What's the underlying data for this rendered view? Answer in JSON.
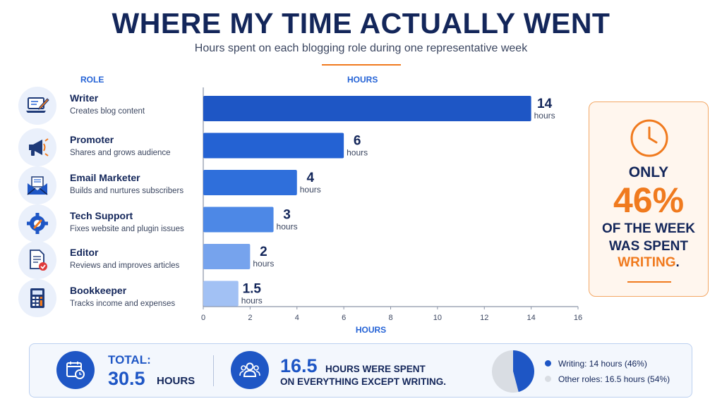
{
  "header": {
    "title": "WHERE MY TIME ACTUALLY WENT",
    "subtitle": "Hours spent on each blogging role during one representative week"
  },
  "columns": {
    "role": "ROLE",
    "hours": "HOURS"
  },
  "roles": [
    {
      "name": "Writer",
      "desc": "Creates blog content",
      "icon": "laptop-pen-icon"
    },
    {
      "name": "Promoter",
      "desc": "Shares and grows audience",
      "icon": "megaphone-icon"
    },
    {
      "name": "Email Marketer",
      "desc": "Builds and nurtures subscribers",
      "icon": "envelope-icon"
    },
    {
      "name": "Tech Support",
      "desc": "Fixes website and plugin issues",
      "icon": "gear-wrench-icon"
    },
    {
      "name": "Editor",
      "desc": "Reviews and improves articles",
      "icon": "document-check-icon"
    },
    {
      "name": "Bookkeeper",
      "desc": "Tracks income and expenses",
      "icon": "calculator-icon"
    }
  ],
  "chart_data": {
    "type": "bar",
    "orientation": "horizontal",
    "categories": [
      "Writer",
      "Promoter",
      "Email Marketer",
      "Tech Support",
      "Editor",
      "Bookkeeper"
    ],
    "values": [
      14,
      6,
      4,
      3,
      2,
      1.5
    ],
    "value_labels": [
      "14",
      "6",
      "4",
      "3",
      "2",
      "1.5"
    ],
    "value_unit": "hours",
    "xlabel": "HOURS",
    "xlim": [
      0,
      16
    ],
    "xticks": [
      0,
      2,
      4,
      6,
      8,
      10,
      12,
      14,
      16
    ],
    "grid": false,
    "bar_colors": [
      "#1e56c5",
      "#2462d3",
      "#2f6fdb",
      "#4d88e6",
      "#76a3ed",
      "#a2c1f4"
    ]
  },
  "callout": {
    "line1": "ONLY",
    "percent": "46%",
    "line2": "OF THE WEEK",
    "line3": "WAS SPENT",
    "highlight": "WRITING",
    "period": ".",
    "icon": "clock-icon",
    "accent": "#f07a1e"
  },
  "footer": {
    "total_label": "TOTAL:",
    "total_value": "30.5",
    "total_unit": "HOURS",
    "other_value": "16.5",
    "other_text1": "HOURS WERE SPENT",
    "other_text2": "ON EVERYTHING EXCEPT WRITING.",
    "pie": {
      "type": "pie",
      "slices": [
        {
          "label": "Writing",
          "value": 14,
          "percent": 46,
          "color": "#1e56c5"
        },
        {
          "label": "Other roles",
          "value": 16.5,
          "percent": 54,
          "color": "#d9dde3"
        }
      ]
    },
    "legend": [
      {
        "text": "Writing: 14 hours (46%)",
        "color": "#1e56c5"
      },
      {
        "text": "Other roles: 16.5 hours (54%)",
        "color": "#d9dde3"
      }
    ]
  }
}
